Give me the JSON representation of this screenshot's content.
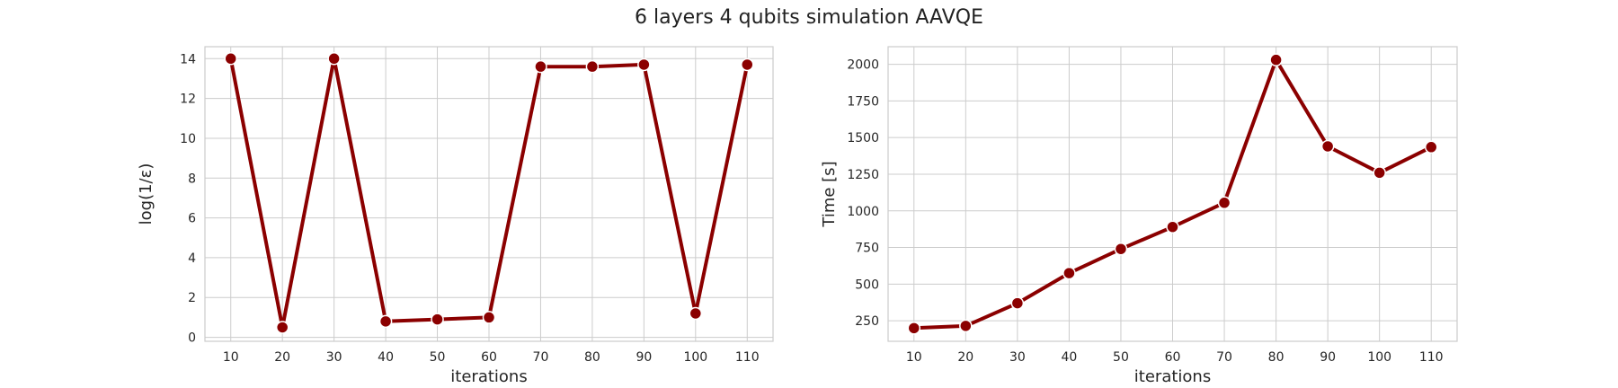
{
  "figure": {
    "title": "6 layers 4 qubits simulation AAVQE"
  },
  "colors": {
    "line": "#8b0000",
    "grid": "#cccccc",
    "spine": "#cccccc",
    "marker_edge": "#ffffff"
  },
  "chart_data": [
    {
      "type": "line",
      "xlabel": "iterations",
      "ylabel": "log(1/ε)",
      "x": [
        10,
        20,
        30,
        40,
        50,
        60,
        70,
        80,
        90,
        100,
        110
      ],
      "series": [
        {
          "values": [
            14.0,
            0.5,
            14.0,
            0.8,
            0.9,
            1.0,
            13.6,
            13.6,
            13.7,
            1.2,
            13.7
          ]
        }
      ],
      "yticks": [
        0,
        2,
        4,
        6,
        8,
        10,
        12,
        14
      ],
      "ylim": [
        -0.2,
        14.6
      ],
      "xlim": [
        5,
        115
      ],
      "grid": true,
      "legend": "none"
    },
    {
      "type": "line",
      "xlabel": "iterations",
      "ylabel": "Time [s]",
      "x": [
        10,
        20,
        30,
        40,
        50,
        60,
        70,
        80,
        90,
        100,
        110
      ],
      "series": [
        {
          "values": [
            200,
            215,
            370,
            575,
            740,
            890,
            1055,
            2030,
            1440,
            1260,
            1435
          ]
        }
      ],
      "yticks": [
        250,
        500,
        750,
        1000,
        1250,
        1500,
        1750,
        2000
      ],
      "ylim": [
        110,
        2120
      ],
      "xlim": [
        5,
        115
      ],
      "grid": true,
      "legend": "none"
    }
  ]
}
